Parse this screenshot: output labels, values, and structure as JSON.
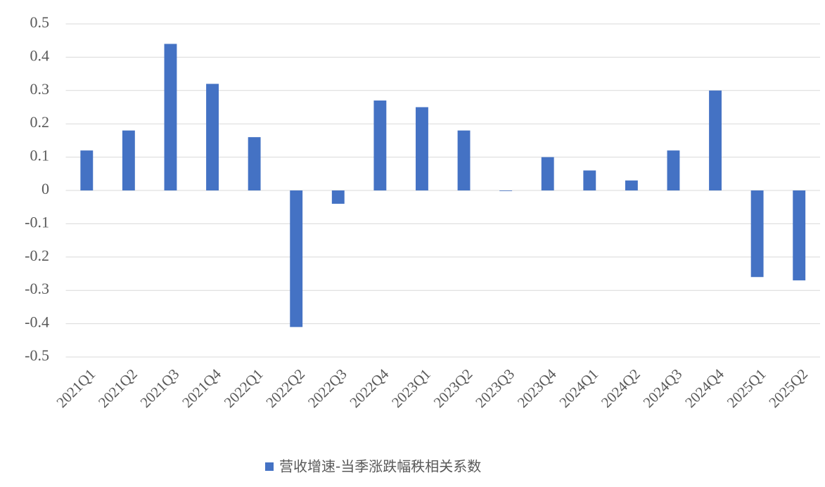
{
  "chart_data": {
    "type": "bar",
    "categories": [
      "2021Q1",
      "2021Q2",
      "2021Q3",
      "2021Q4",
      "2022Q1",
      "2022Q2",
      "2022Q3",
      "2022Q4",
      "2023Q1",
      "2023Q2",
      "2023Q3",
      "2023Q4",
      "2024Q1",
      "2024Q2",
      "2024Q3",
      "2024Q4",
      "2025Q1",
      "2025Q2"
    ],
    "series": [
      {
        "name": "营收增速-当季涨跌幅秩相关系数",
        "color": "#4472c4",
        "values": [
          0.12,
          0.18,
          0.44,
          0.32,
          0.16,
          -0.41,
          -0.04,
          0.27,
          0.25,
          0.18,
          0,
          0.1,
          0.06,
          0.03,
          0.12,
          0.3,
          -0.26,
          -0.27
        ]
      }
    ],
    "ylim": [
      -0.5,
      0.5
    ],
    "yticks": [
      -0.5,
      -0.4,
      -0.3,
      -0.2,
      -0.1,
      0,
      0.1,
      0.2,
      0.3,
      0.4,
      0.5
    ],
    "grid": true,
    "legend": "bottom"
  }
}
